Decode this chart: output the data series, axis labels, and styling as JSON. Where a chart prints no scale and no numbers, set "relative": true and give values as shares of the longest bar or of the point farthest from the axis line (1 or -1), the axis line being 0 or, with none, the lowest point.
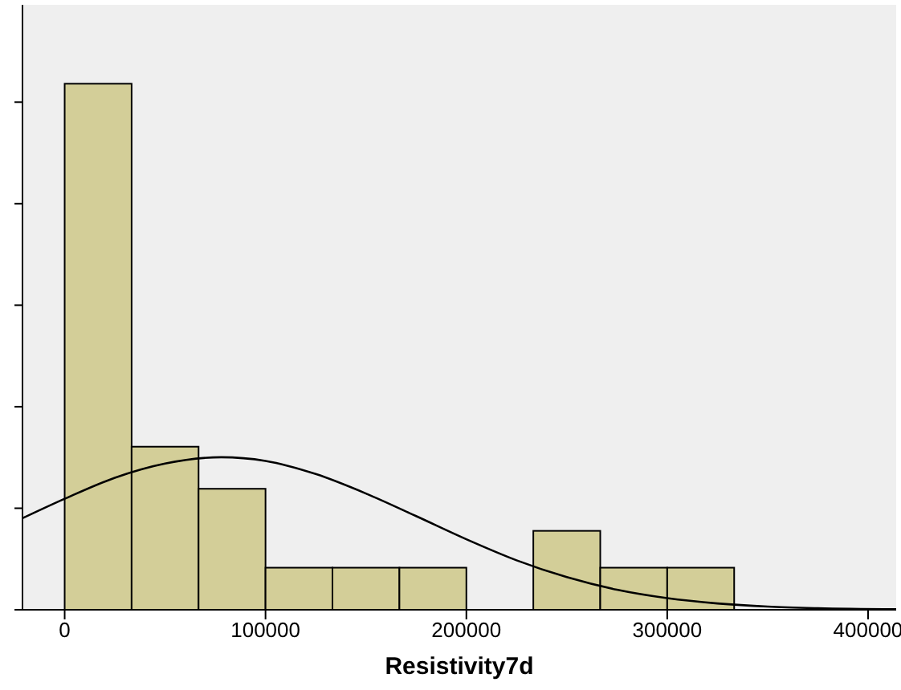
{
  "chart_data": {
    "type": "histogram",
    "xlabel": "Resistivity7d",
    "relative": true,
    "bins": [
      0,
      33333,
      66667,
      100000,
      133333,
      166667,
      200000,
      233333,
      266667,
      300000,
      333333
    ],
    "values": [
      1,
      0.31,
      0.23,
      0.08,
      0.08,
      0.08,
      0,
      0.15,
      0.08,
      0.08
    ],
    "color": "#d3ce98",
    "xlim": [
      -21000,
      414000
    ],
    "xticks": [
      0,
      100000,
      200000,
      300000,
      400000
    ],
    "series": [
      {
        "type": "line",
        "color": "#000000",
        "x": [
          -21000,
          0,
          25000,
          50000,
          78000,
          100000,
          125000,
          150000,
          175000,
          200000,
          225000,
          250000,
          275000,
          300000,
          325000,
          350000,
          375000,
          414000
        ],
        "values": [
          0.174,
          0.211,
          0.251,
          0.278,
          0.29,
          0.283,
          0.258,
          0.221,
          0.178,
          0.134,
          0.094,
          0.062,
          0.038,
          0.022,
          0.012,
          0.006,
          0.003,
          0.001
        ]
      }
    ]
  }
}
